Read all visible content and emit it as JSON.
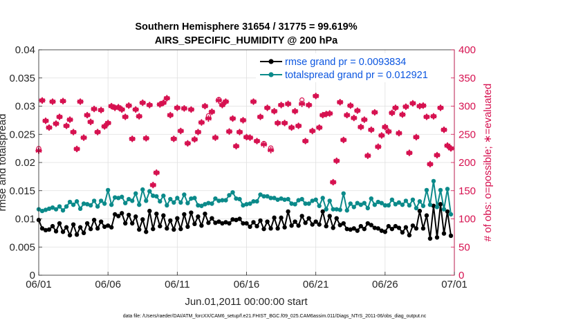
{
  "chart_data": {
    "type": "line",
    "title": "Southern Hemisphere 31654 / 31775 = 99.619%",
    "subtitle": "AIRS_SPECIFIC_HUMIDITY @ 200 hPa",
    "xlabel": "Jun.01,2011 00:00:00 start",
    "ylabel": "rmse and totalspread",
    "ylabel_right": "# of obs: o=possible; ∗=evaluated",
    "footnote": "data file: /Users/raeder/DAI/ATM_forcXX/CAM6_setup/f.e21.FHIST_BGC.f09_025.CAM6assim.011/Diags_NTrS_2011-06/obs_diag_output.nc",
    "xlim": [
      0,
      30
    ],
    "ylim": [
      0,
      0.04
    ],
    "ylim_right": [
      0,
      400
    ],
    "x_ticks": [
      0,
      5,
      10,
      15,
      20,
      25,
      30
    ],
    "x_tick_labels": [
      "06/01",
      "06/06",
      "06/11",
      "06/16",
      "06/21",
      "06/26",
      "07/01"
    ],
    "y_ticks": [
      0,
      0.005,
      0.01,
      0.015,
      0.02,
      0.025,
      0.03,
      0.035,
      0.04
    ],
    "y_tick_labels": [
      "0",
      "0.005",
      "0.01",
      "0.015",
      "0.02",
      "0.025",
      "0.03",
      "0.035",
      "0.04"
    ],
    "y_right_ticks": [
      0,
      50,
      100,
      150,
      200,
      250,
      300,
      350,
      400
    ],
    "y_right_tick_labels": [
      "0",
      "50",
      "100",
      "150",
      "200",
      "250",
      "300",
      "350",
      "400"
    ],
    "grid": true,
    "legend_position": "top-right",
    "series": [
      {
        "name": "rmse grand pr = 0.0093834",
        "color": "#000000",
        "axis": "left",
        "x": [
          0,
          0.25,
          0.5,
          0.75,
          1,
          1.25,
          1.5,
          1.75,
          2,
          2.25,
          2.5,
          2.75,
          3,
          3.25,
          3.5,
          3.75,
          4,
          4.25,
          4.5,
          4.75,
          5,
          5.25,
          5.5,
          5.75,
          6,
          6.25,
          6.5,
          6.75,
          7,
          7.25,
          7.5,
          7.75,
          8,
          8.25,
          8.5,
          8.75,
          9,
          9.25,
          9.5,
          9.75,
          10,
          10.25,
          10.5,
          10.75,
          11,
          11.25,
          11.5,
          11.75,
          12,
          12.25,
          12.5,
          12.75,
          13,
          13.25,
          13.5,
          13.75,
          14,
          14.25,
          14.5,
          14.75,
          15,
          15.25,
          15.5,
          15.75,
          16,
          16.25,
          16.5,
          16.75,
          17,
          17.25,
          17.5,
          17.75,
          18,
          18.25,
          18.5,
          18.75,
          19,
          19.25,
          19.5,
          19.75,
          20,
          20.25,
          20.5,
          20.75,
          21,
          21.25,
          21.5,
          21.75,
          22,
          22.25,
          22.5,
          22.75,
          23,
          23.25,
          23.5,
          23.75,
          24,
          24.25,
          24.5,
          24.75,
          25,
          25.25,
          25.5,
          25.75,
          26,
          26.25,
          26.5,
          26.75,
          27,
          27.25,
          27.5,
          27.75,
          28,
          28.25,
          28.5,
          28.75,
          29,
          29.25,
          29.5,
          29.75
        ],
        "values": [
          0.0098,
          0.0083,
          0.008,
          0.0081,
          0.0087,
          0.0078,
          0.0092,
          0.0077,
          0.0085,
          0.0071,
          0.009,
          0.0072,
          0.0085,
          0.0075,
          0.0092,
          0.0082,
          0.0098,
          0.0083,
          0.0095,
          0.0086,
          0.0088,
          0.0085,
          0.0108,
          0.0105,
          0.011,
          0.0092,
          0.0107,
          0.0092,
          0.0104,
          0.0081,
          0.0099,
          0.0077,
          0.0114,
          0.0082,
          0.0109,
          0.0087,
          0.0106,
          0.0083,
          0.0097,
          0.0081,
          0.0101,
          0.0082,
          0.0108,
          0.0086,
          0.0111,
          0.0091,
          0.0104,
          0.0088,
          0.0109,
          0.0093,
          0.0101,
          0.0093,
          0.0095,
          0.0092,
          0.0094,
          0.0092,
          0.0099,
          0.0098,
          0.01,
          0.0092,
          0.0092,
          0.0086,
          0.0094,
          0.0087,
          0.0097,
          0.0082,
          0.0095,
          0.0083,
          0.0102,
          0.0083,
          0.0102,
          0.0085,
          0.0113,
          0.0088,
          0.0095,
          0.0088,
          0.0105,
          0.0093,
          0.0101,
          0.009,
          0.0095,
          0.009,
          0.0113,
          0.0087,
          0.0105,
          0.0084,
          0.0101,
          0.0089,
          0.0092,
          0.0082,
          0.0081,
          0.0083,
          0.0079,
          0.0087,
          0.0082,
          0.0092,
          0.0089,
          0.0084,
          0.0083,
          0.0079,
          0.0077,
          0.0087,
          0.0082,
          0.0087,
          0.0084,
          0.0076,
          0.0085,
          0.0071,
          0.0088,
          0.0083,
          0.0114,
          0.0083,
          0.0106,
          0.0065,
          0.0123,
          0.0067,
          0.0126,
          0.0074,
          0.0113,
          0.007
        ]
      },
      {
        "name": "totalspread grand pr = 0.012921",
        "color": "#0b8a8a",
        "axis": "left",
        "x": [
          0,
          0.25,
          0.5,
          0.75,
          1,
          1.25,
          1.5,
          1.75,
          2,
          2.25,
          2.5,
          2.75,
          3,
          3.25,
          3.5,
          3.75,
          4,
          4.25,
          4.5,
          4.75,
          5,
          5.25,
          5.5,
          5.75,
          6,
          6.25,
          6.5,
          6.75,
          7,
          7.25,
          7.5,
          7.75,
          8,
          8.25,
          8.5,
          8.75,
          9,
          9.25,
          9.5,
          9.75,
          10,
          10.25,
          10.5,
          10.75,
          11,
          11.25,
          11.5,
          11.75,
          12,
          12.25,
          12.5,
          12.75,
          13,
          13.25,
          13.5,
          13.75,
          14,
          14.25,
          14.5,
          14.75,
          15,
          15.25,
          15.5,
          15.75,
          16,
          16.25,
          16.5,
          16.75,
          17,
          17.25,
          17.5,
          17.75,
          18,
          18.25,
          18.5,
          18.75,
          19,
          19.25,
          19.5,
          19.75,
          20,
          20.25,
          20.5,
          20.75,
          21,
          21.25,
          21.5,
          21.75,
          22,
          22.25,
          22.5,
          22.75,
          23,
          23.25,
          23.5,
          23.75,
          24,
          24.25,
          24.5,
          24.75,
          25,
          25.25,
          25.5,
          25.75,
          26,
          26.25,
          26.5,
          26.75,
          27,
          27.25,
          27.5,
          27.75,
          28,
          28.25,
          28.5,
          28.75,
          29,
          29.25,
          29.5,
          29.75
        ],
        "values": [
          0.0117,
          0.0114,
          0.0116,
          0.0118,
          0.012,
          0.0117,
          0.0122,
          0.0115,
          0.0122,
          0.013,
          0.0125,
          0.0131,
          0.0118,
          0.0127,
          0.0126,
          0.0124,
          0.0132,
          0.0122,
          0.0132,
          0.0127,
          0.0151,
          0.0125,
          0.0138,
          0.0137,
          0.0139,
          0.0128,
          0.0135,
          0.0132,
          0.0145,
          0.0125,
          0.0152,
          0.0132,
          0.0149,
          0.0141,
          0.014,
          0.0131,
          0.0141,
          0.0124,
          0.0135,
          0.0129,
          0.0137,
          0.0129,
          0.0143,
          0.0128,
          0.0136,
          0.0137,
          0.0124,
          0.0123,
          0.0126,
          0.0128,
          0.0127,
          0.0136,
          0.0132,
          0.0133,
          0.0133,
          0.0142,
          0.0147,
          0.0136,
          0.0135,
          0.0124,
          0.0126,
          0.0127,
          0.0131,
          0.0131,
          0.0143,
          0.014,
          0.014,
          0.0137,
          0.0137,
          0.0134,
          0.0136,
          0.0134,
          0.0135,
          0.0127,
          0.0126,
          0.0133,
          0.0135,
          0.0127,
          0.0127,
          0.0132,
          0.0134,
          0.0123,
          0.0137,
          0.0117,
          0.0132,
          0.0117,
          0.0117,
          0.0116,
          0.0145,
          0.0115,
          0.0127,
          0.0121,
          0.0128,
          0.0125,
          0.0128,
          0.0119,
          0.0136,
          0.0125,
          0.013,
          0.0128,
          0.0124,
          0.0124,
          0.0134,
          0.0126,
          0.0129,
          0.0125,
          0.0132,
          0.0124,
          0.0134,
          0.0119,
          0.0131,
          0.0123,
          0.0151,
          0.0125,
          0.0167,
          0.0121,
          0.0151,
          0.0117,
          0.0153,
          0.0108
        ]
      },
      {
        "name": "possible",
        "marker": "o",
        "color": "#d6104f",
        "axis": "right",
        "x": [
          0,
          0.25,
          0.5,
          0.75,
          1,
          1.25,
          1.5,
          1.75,
          2,
          2.25,
          2.5,
          2.75,
          3,
          3.25,
          3.5,
          3.75,
          4,
          4.25,
          4.5,
          4.75,
          5,
          5.25,
          5.5,
          5.75,
          6,
          6.25,
          6.5,
          6.75,
          7,
          7.25,
          7.5,
          7.75,
          8,
          8.25,
          8.5,
          8.75,
          9,
          9.25,
          9.5,
          9.75,
          10,
          10.25,
          10.5,
          10.75,
          11,
          11.25,
          11.5,
          11.75,
          12,
          12.25,
          12.5,
          12.75,
          13,
          13.25,
          13.5,
          13.75,
          14,
          14.25,
          14.5,
          14.75,
          15,
          15.25,
          15.5,
          15.75,
          16,
          16.25,
          16.5,
          16.75,
          17,
          17.25,
          17.5,
          17.75,
          18,
          18.25,
          18.5,
          18.75,
          19,
          19.25,
          19.5,
          19.75,
          20,
          20.25,
          20.5,
          20.75,
          21,
          21.25,
          21.5,
          21.75,
          22,
          22.25,
          22.5,
          22.75,
          23,
          23.25,
          23.5,
          23.75,
          24,
          24.25,
          24.5,
          24.75,
          25,
          25.25,
          25.5,
          25.75,
          26,
          26.25,
          26.5,
          26.75,
          27,
          27.25,
          27.5,
          27.75,
          28,
          28.25,
          28.5,
          28.75,
          29,
          29.25,
          29.5,
          29.75
        ],
        "values": [
          225,
          310,
          274,
          262,
          308,
          269,
          281,
          309,
          265,
          276,
          254,
          224,
          308,
          244,
          284,
          272,
          295,
          254,
          293,
          264,
          270,
          300,
          297,
          298,
          294,
          281,
          301,
          242,
          294,
          282,
          306,
          243,
          302,
          160,
          182,
          303,
          306,
          314,
          284,
          242,
          297,
          256,
          296,
          234,
          294,
          241,
          254,
          271,
          300,
          283,
          290,
          244,
          312,
          302,
          308,
          255,
          278,
          229,
          254,
          275,
          245,
          244,
          308,
          238,
          281,
          234,
          297,
          226,
          291,
          270,
          302,
          270,
          304,
          262,
          291,
          265,
          311,
          238,
          302,
          256,
          318,
          262,
          284,
          286,
          287,
          165,
          203,
          307,
          240,
          284,
          301,
          279,
          292,
          263,
          276,
          212,
          258,
          289,
          228,
          248,
          263,
          255,
          288,
          297,
          252,
          285,
          299,
          217,
          305,
          245,
          300,
          301,
          281,
          197,
          282,
          213,
          297,
          258,
          230,
          225
        ]
      },
      {
        "name": "evaluated",
        "marker": "*",
        "color": "#d6104f",
        "axis": "right",
        "x": [
          0,
          0.25,
          0.5,
          0.75,
          1,
          1.25,
          1.5,
          1.75,
          2,
          2.25,
          2.5,
          2.75,
          3,
          3.25,
          3.5,
          3.75,
          4,
          4.25,
          4.5,
          4.75,
          5,
          5.25,
          5.5,
          5.75,
          6,
          6.25,
          6.5,
          6.75,
          7,
          7.25,
          7.5,
          7.75,
          8,
          8.25,
          8.5,
          8.75,
          9,
          9.25,
          9.5,
          9.75,
          10,
          10.25,
          10.5,
          10.75,
          11,
          11.25,
          11.5,
          11.75,
          12,
          12.25,
          12.5,
          12.75,
          13,
          13.25,
          13.5,
          13.75,
          14,
          14.25,
          14.5,
          14.75,
          15,
          15.25,
          15.5,
          15.75,
          16,
          16.25,
          16.5,
          16.75,
          17,
          17.25,
          17.5,
          17.75,
          18,
          18.25,
          18.5,
          18.75,
          19,
          19.25,
          19.5,
          19.75,
          20,
          20.25,
          20.5,
          20.75,
          21,
          21.25,
          21.5,
          21.75,
          22,
          22.25,
          22.5,
          22.75,
          23,
          23.25,
          23.5,
          23.75,
          24,
          24.25,
          24.5,
          24.75,
          25,
          25.25,
          25.5,
          25.75,
          26,
          26.25,
          26.5,
          26.75,
          27,
          27.25,
          27.5,
          27.75,
          28,
          28.25,
          28.5,
          28.75,
          29,
          29.25,
          29.5,
          29.75
        ],
        "values": [
          221,
          310,
          274,
          262,
          308,
          269,
          281,
          309,
          265,
          276,
          254,
          224,
          308,
          244,
          284,
          272,
          295,
          254,
          293,
          264,
          270,
          300,
          297,
          298,
          294,
          281,
          301,
          242,
          294,
          282,
          306,
          243,
          302,
          160,
          182,
          303,
          306,
          314,
          284,
          242,
          297,
          256,
          296,
          234,
          294,
          241,
          254,
          271,
          300,
          278,
          290,
          244,
          310,
          302,
          308,
          255,
          278,
          229,
          254,
          275,
          245,
          244,
          308,
          238,
          281,
          232,
          297,
          222,
          291,
          270,
          302,
          270,
          304,
          262,
          291,
          265,
          304,
          238,
          302,
          256,
          318,
          262,
          284,
          286,
          287,
          165,
          203,
          307,
          240,
          284,
          301,
          279,
          292,
          263,
          276,
          212,
          258,
          289,
          228,
          248,
          263,
          255,
          288,
          297,
          252,
          285,
          299,
          217,
          305,
          245,
          300,
          301,
          281,
          197,
          282,
          213,
          297,
          258,
          230,
          225
        ]
      }
    ]
  }
}
